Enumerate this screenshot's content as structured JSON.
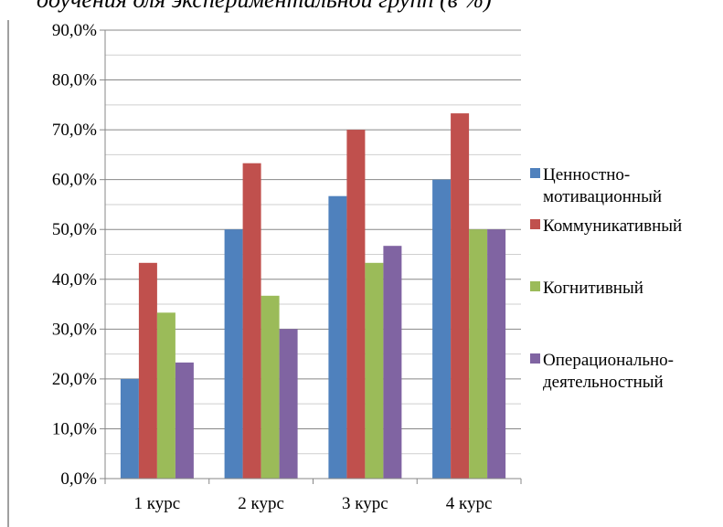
{
  "chart_data": {
    "type": "bar",
    "title": "ооучения оля экспериментальной групп (в %)",
    "xlabel": "",
    "ylabel": "",
    "categories": [
      "1 курс",
      "2 курс",
      "3 курс",
      "4 курс"
    ],
    "series": [
      {
        "name": "Ценностно-мотивационный",
        "legend_lines": [
          "Ценностно-",
          "мотивационный"
        ],
        "color": "#4f81bd",
        "values": [
          20.0,
          50.0,
          56.7,
          60.0
        ]
      },
      {
        "name": "Коммуникативный",
        "legend_lines": [
          "Коммуникативный"
        ],
        "color": "#c0504d",
        "values": [
          43.3,
          63.3,
          70.0,
          73.3
        ]
      },
      {
        "name": "Когнитивный",
        "legend_lines": [
          "Когнитивный"
        ],
        "color": "#9bbb59",
        "values": [
          33.3,
          36.7,
          43.3,
          50.0
        ]
      },
      {
        "name": "Операционально-деятельностный",
        "legend_lines": [
          "Операционально-",
          "деятельностный"
        ],
        "color": "#8064a2",
        "values": [
          23.3,
          30.0,
          46.7,
          50.0
        ]
      }
    ],
    "ylim": [
      0,
      90
    ],
    "yticks": [
      0,
      10,
      20,
      30,
      40,
      50,
      60,
      70,
      80,
      90
    ],
    "ytick_labels": [
      "0,0%",
      "10,0%",
      "20,0%",
      "30,0%",
      "40,0%",
      "50,0%",
      "60,0%",
      "70,0%",
      "80,0%",
      "90,0%"
    ],
    "grid": true,
    "minor_grid": true,
    "legend_position": "right"
  }
}
